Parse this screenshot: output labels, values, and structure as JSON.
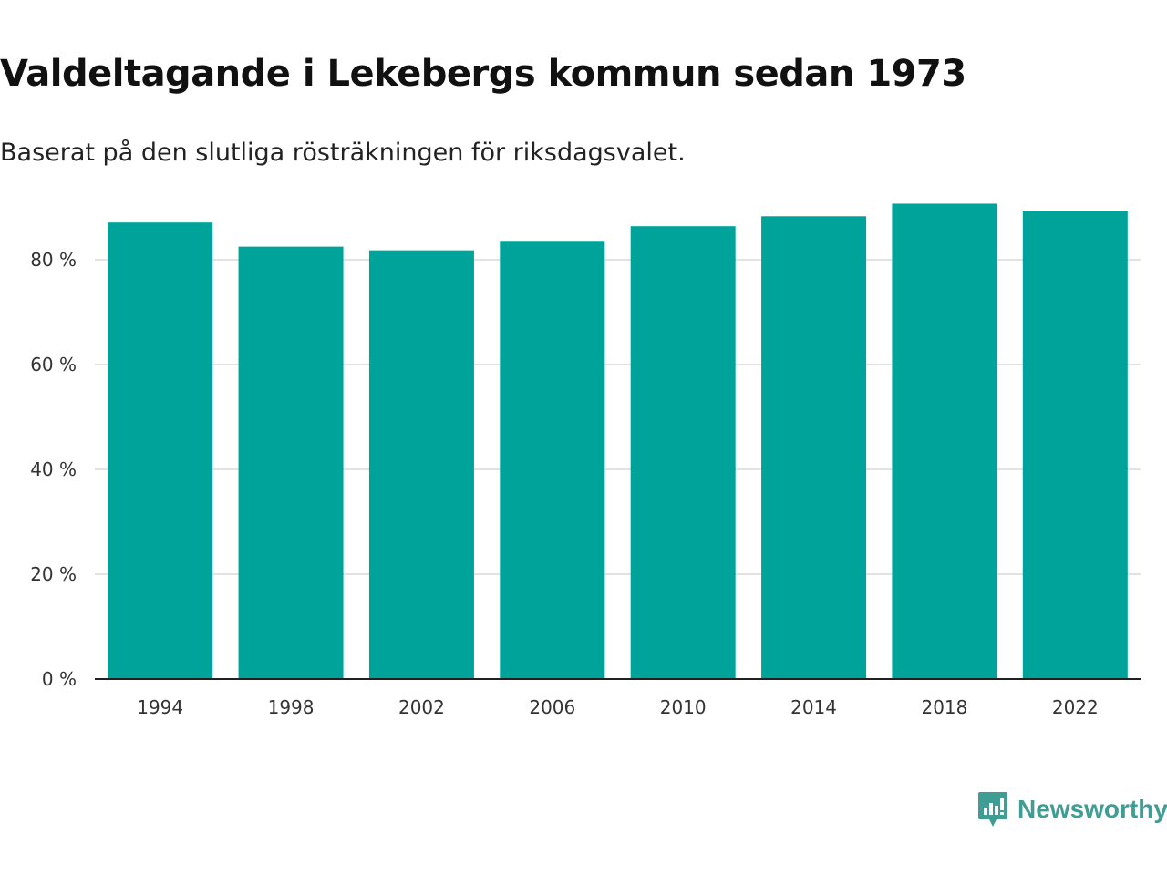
{
  "header": {
    "title": "Valdeltagande i Lekebergs kommun sedan 1973",
    "subtitle": "Baserat på den slutliga rösträkningen för riksdagsvalet."
  },
  "brand": {
    "name": "Newsworthy",
    "icon": "newsworthy-logo-icon",
    "color": "#3f9d93"
  },
  "colors": {
    "bar": "#00a39a",
    "grid": "#d9d9d9",
    "axis": "#222222"
  },
  "chart_data": {
    "type": "bar",
    "title": "Valdeltagande i Lekebergs kommun sedan 1973",
    "subtitle": "Baserat på den slutliga rösträkningen för riksdagsvalet.",
    "categories": [
      "1994",
      "1998",
      "2002",
      "2006",
      "2010",
      "2014",
      "2018",
      "2022"
    ],
    "values": [
      87.1,
      82.5,
      81.8,
      83.6,
      86.4,
      88.3,
      90.7,
      89.3
    ],
    "xlabel": "",
    "ylabel": "",
    "ylim": [
      0,
      90
    ],
    "yticks": [
      0,
      20,
      40,
      60,
      80
    ],
    "ytick_labels": [
      "0 %",
      "20 %",
      "40 %",
      "60 %",
      "80 %"
    ],
    "grid": true
  }
}
